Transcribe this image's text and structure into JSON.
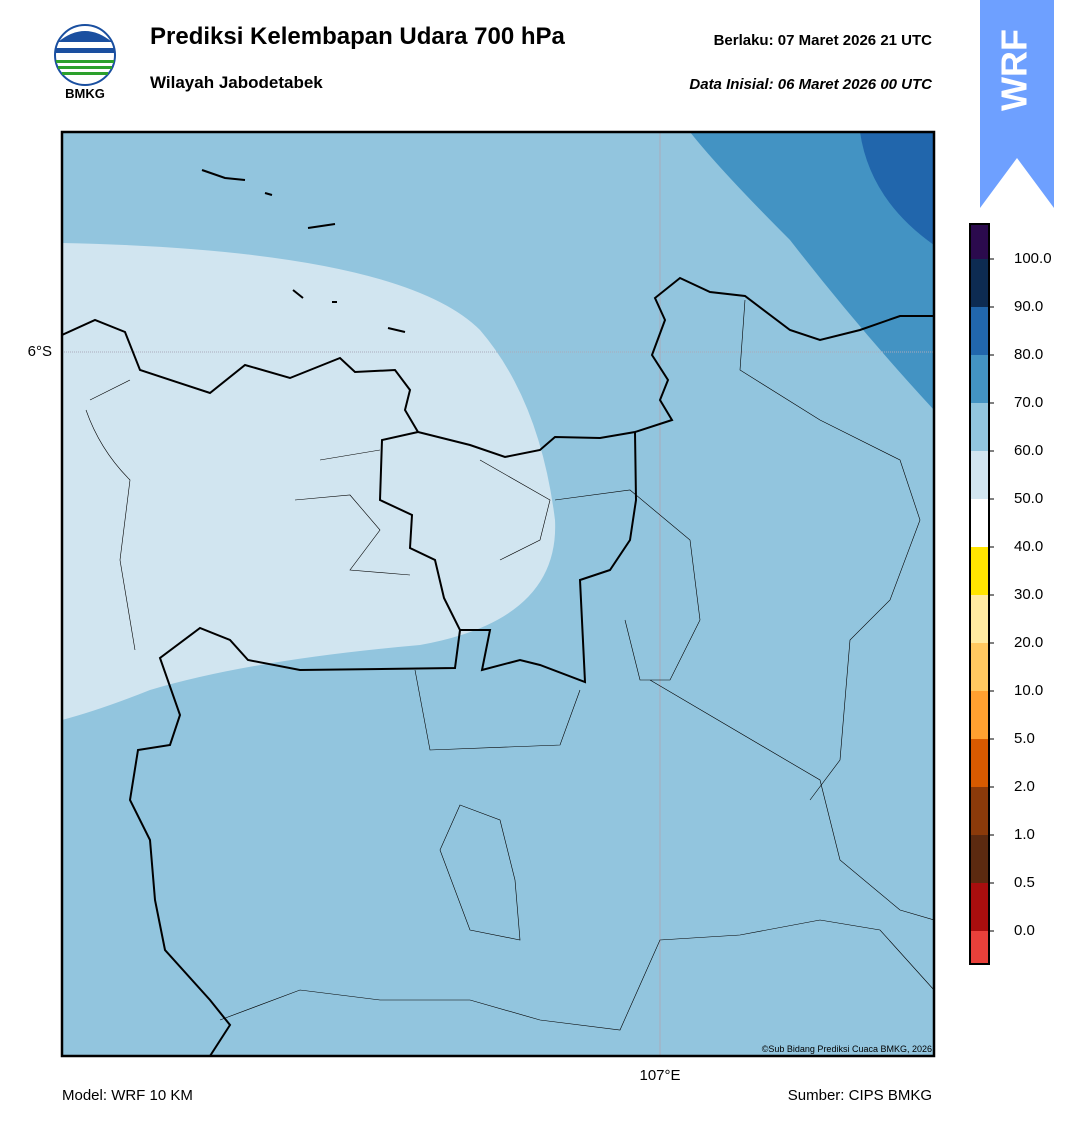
{
  "header": {
    "title": "Prediksi Kelembapan Udara 700 hPa",
    "subtitle": "Wilayah Jabodetabek",
    "valid": "Berlaku:  07 Maret 2026 21 UTC",
    "init": "Data Inisial:  06 Maret 2026 00 UTC",
    "logo_text": "BMKG",
    "badge": "WRF"
  },
  "map": {
    "lat_label": "6°S",
    "lon_label": "107°E",
    "credit": "©Sub Bidang Prediksi Cuaca BMKG, 2026"
  },
  "colorbar": {
    "labels": [
      "100.0",
      "90.0",
      "80.0",
      "70.0",
      "60.0",
      "50.0",
      "40.0",
      "30.0",
      "20.0",
      "10.0",
      "5.0",
      "2.0",
      "1.0",
      "0.5",
      "0.0"
    ],
    "colors": [
      "#2b0a4d",
      "#0d2b52",
      "#2166ac",
      "#4393c3",
      "#92c5de",
      "#d1e5f0",
      "#ffffff",
      "#ffe400",
      "#ffeaa0",
      "#ffc860",
      "#ffa030",
      "#d85a00",
      "#8b3a0a",
      "#5c2a10",
      "#a80e0e",
      "#e8403a"
    ]
  },
  "footer": {
    "model": "Model: WRF 10 KM",
    "source": "Sumber: CIPS BMKG"
  }
}
